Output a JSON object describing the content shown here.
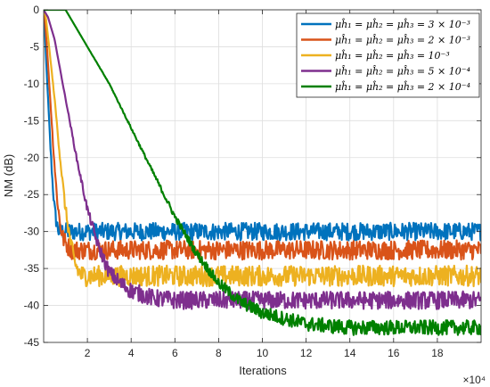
{
  "chart_data": {
    "type": "line",
    "title": "",
    "xlabel": "Iterations",
    "ylabel": "NM (dB)",
    "x_multiplier": "×10⁴",
    "xlim": [
      0,
      200000
    ],
    "ylim": [
      -45,
      0
    ],
    "x_ticks": [
      20000,
      40000,
      60000,
      80000,
      100000,
      120000,
      140000,
      160000,
      180000
    ],
    "x_tick_labels": [
      "2",
      "4",
      "6",
      "8",
      "10",
      "12",
      "14",
      "16",
      "18"
    ],
    "y_ticks": [
      0,
      -5,
      -10,
      -15,
      -20,
      -25,
      -30,
      -35,
      -40,
      -45
    ],
    "y_tick_labels": [
      "0",
      "-5",
      "-10",
      "-15",
      "-20",
      "-25",
      "-30",
      "-35",
      "-40",
      "-45"
    ],
    "grid": true,
    "legend_position": "top-right",
    "series": [
      {
        "name": "μĥ₁ = μĥ₂ = μĥ₃ = 3 × 10⁻³",
        "color": "#0072bd",
        "x": [
          0,
          300,
          1000,
          2000,
          3000,
          4000,
          5000,
          6000,
          7000,
          10000,
          20000,
          40000,
          60000,
          80000,
          100000,
          120000,
          140000,
          160000,
          180000,
          200000
        ],
        "y": [
          0,
          -1,
          -6,
          -12,
          -18,
          -23,
          -27,
          -29,
          -30,
          -30,
          -30,
          -30,
          -30,
          -30,
          -30,
          -30,
          -30,
          -30,
          -30,
          -30
        ],
        "noise": 1.2
      },
      {
        "name": "μĥ₁ = μĥ₂ = μĥ₃ = 2 × 10⁻³",
        "color": "#d95319",
        "x": [
          0,
          500,
          1500,
          3000,
          4500,
          6000,
          7500,
          9000,
          11000,
          13000,
          20000,
          40000,
          60000,
          80000,
          100000,
          120000,
          140000,
          160000,
          180000,
          200000
        ],
        "y": [
          0,
          -1,
          -5,
          -12,
          -19,
          -25,
          -29,
          -31,
          -32,
          -32.5,
          -32.5,
          -32.5,
          -32.5,
          -32.5,
          -32.5,
          -32.5,
          -32.5,
          -32.5,
          -32.5,
          -32.5
        ],
        "noise": 1.3
      },
      {
        "name": "μĥ₁ = μĥ₂ = μĥ₃ = 10⁻³",
        "color": "#edb120",
        "x": [
          0,
          1000,
          2500,
          5000,
          7500,
          10000,
          12000,
          14000,
          16000,
          18000,
          25000,
          40000,
          60000,
          80000,
          100000,
          120000,
          140000,
          160000,
          180000,
          200000
        ],
        "y": [
          0,
          -1,
          -5,
          -12,
          -20,
          -27,
          -31,
          -34,
          -35.5,
          -36,
          -36,
          -36,
          -36,
          -36,
          -36,
          -36,
          -36,
          -36,
          -36,
          -36
        ],
        "noise": 1.4
      },
      {
        "name": "μĥ₁ = μĥ₂ = μĥ₃ = 5 × 10⁻⁴",
        "color": "#7e2f8e",
        "x": [
          0,
          2000,
          5000,
          10000,
          15000,
          20000,
          25000,
          30000,
          35000,
          40000,
          50000,
          60000,
          80000,
          100000,
          120000,
          140000,
          160000,
          180000,
          200000
        ],
        "y": [
          0,
          -1,
          -4,
          -12,
          -20,
          -27,
          -32,
          -35.5,
          -37,
          -38,
          -39,
          -39.3,
          -39.3,
          -39.3,
          -39.3,
          -39.3,
          -39.3,
          -39.3,
          -39.3
        ],
        "noise": 1.2
      },
      {
        "name": "μĥ₁ = μĥ₂ = μĥ₃ = 2 × 10⁻⁴",
        "color": "#008000",
        "x": [
          0,
          10000,
          12000,
          20000,
          30000,
          40000,
          50000,
          60000,
          70000,
          80000,
          90000,
          100000,
          120000,
          140000,
          160000,
          180000,
          200000
        ],
        "y": [
          0,
          0,
          -1,
          -5,
          -10,
          -16,
          -22,
          -28,
          -33,
          -37,
          -39.5,
          -41,
          -42.5,
          -43,
          -43,
          -43,
          -43
        ],
        "noise": 1.0
      }
    ]
  }
}
